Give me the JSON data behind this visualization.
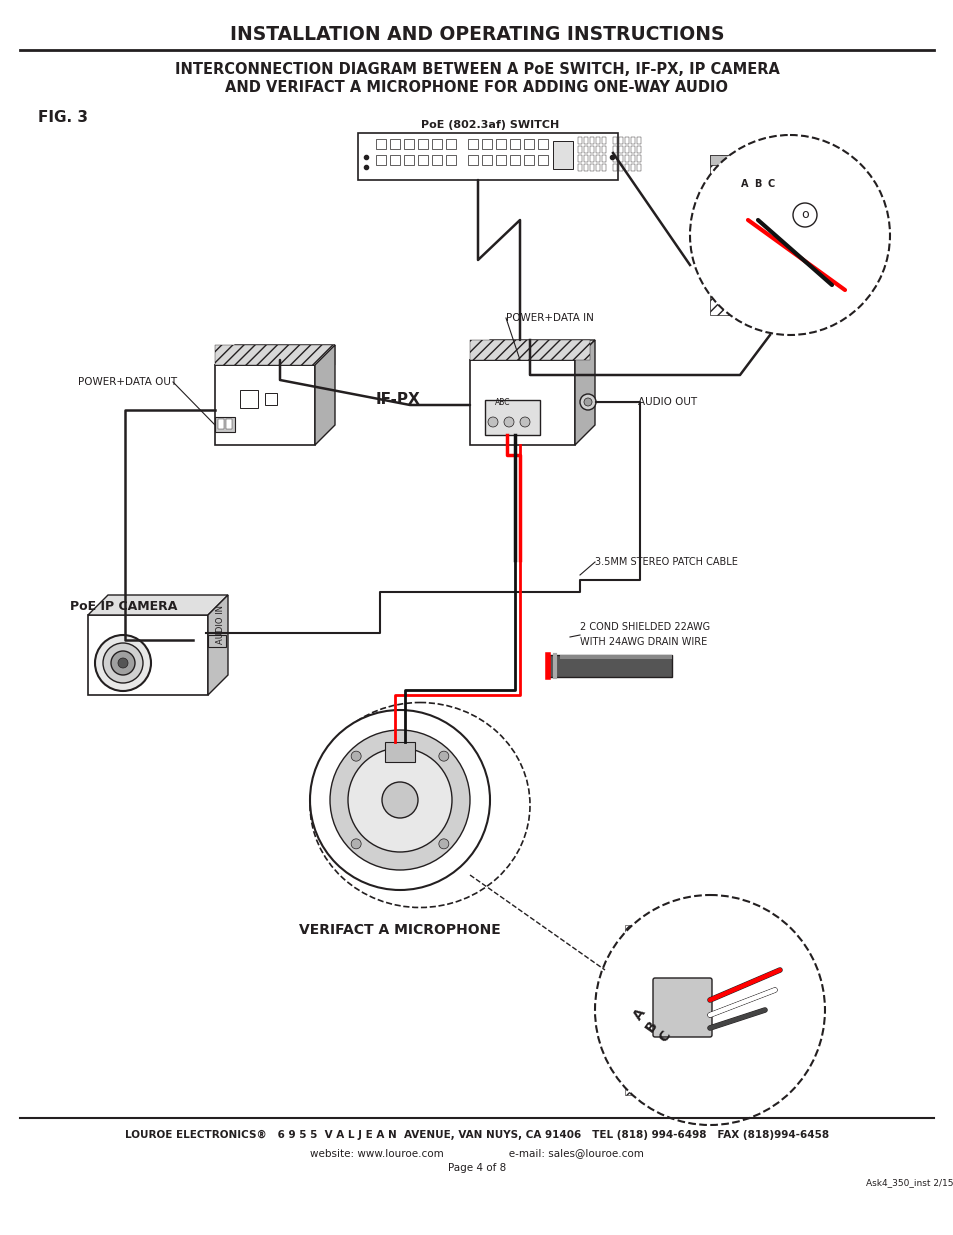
{
  "title": "INSTALLATION AND OPERATING INSTRUCTIONS",
  "subtitle_line1": "INTERCONNECTION DIAGRAM BETWEEN A PoE SWITCH, IF-PX, IP CAMERA",
  "subtitle_line2": "AND VERIFACT A MICROPHONE FOR ADDING ONE-WAY AUDIO",
  "fig_label": "FIG. 3",
  "footer_line1": "LOUROE ELECTRONICS®   6 9 5 5  V A L J E A N  AVENUE, VAN NUYS, CA 91406   TEL (818) 994-6498   FAX (818)994-6458",
  "footer_line2": "website: www.louroe.com                    e-mail: sales@louroe.com",
  "footer_line3": "Page 4 of 8",
  "footer_line4": "Ask4_350_inst 2/15",
  "bg_color": "#ffffff",
  "text_color": "#231f20",
  "label_poe_switch": "PoE (802.3af) SWITCH",
  "label_if_px": "IF-PX",
  "label_power_data_out": "POWER+DATA OUT",
  "label_power_data_in": "POWER+DATA IN",
  "label_audio_out": "AUDIO OUT",
  "label_audio_in": "AUDIO IN",
  "label_stereo_patch": "3.5MM STEREO PATCH CABLE",
  "label_cable1": "2 COND SHIELDED 22AWG",
  "label_cable2": "WITH 24AWG DRAIN WIRE",
  "label_poe_camera": "PoE IP CAMERA",
  "label_microphone": "VERIFACT A MICROPHONE"
}
